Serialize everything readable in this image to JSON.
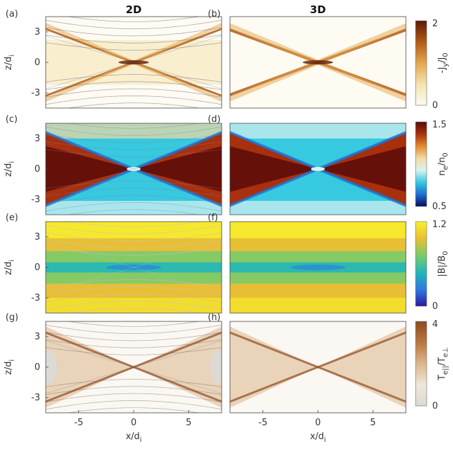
{
  "column_titles": [
    "2D",
    "3D"
  ],
  "panel_letters": [
    "(a)",
    "(b)",
    "(c)",
    "(d)",
    "(e)",
    "(f)",
    "(g)",
    "(h)"
  ],
  "row_ylabel": "z/d",
  "row_ylabel_sub": "i",
  "xlabel": "x/d",
  "xlabel_sub": "i",
  "colors": {
    "Jy": [
      "#fdfbf2",
      "#f5e3b0",
      "#e3a74e",
      "#b25a14",
      "#5c1a05"
    ],
    "ne": [
      "#0b0a66",
      "#1f6fd1",
      "#37c9e0",
      "#d9f2f0",
      "#f4d9a1",
      "#e08a2c",
      "#a8300c",
      "#5a0a0a"
    ],
    "B": [
      "#2a1a9e",
      "#2c7be0",
      "#22b7b8",
      "#7bcb6a",
      "#e8bf34",
      "#f9f22a"
    ],
    "T": [
      "#dcdad4",
      "#efe7dc",
      "#dbb78a",
      "#b9773f",
      "#8c4a1e"
    ]
  },
  "chart_data": [
    {
      "type": "heatmap",
      "panel": "(a)",
      "column": "2D",
      "quantity": "Jy",
      "colorbar": {
        "label": "-J_y/J_0",
        "ticks": [
          "0",
          "2"
        ],
        "range": [
          0,
          2
        ]
      },
      "xlim": [
        -8,
        8
      ],
      "ylim": [
        -4.5,
        4.5
      ],
      "xticks": [
        -5,
        0,
        5
      ],
      "yticks": [
        -3,
        0,
        3
      ]
    },
    {
      "type": "heatmap",
      "panel": "(b)",
      "column": "3D",
      "quantity": "Jy",
      "xlim": [
        -8,
        8
      ],
      "ylim": [
        -4.5,
        4.5
      ]
    },
    {
      "type": "heatmap",
      "panel": "(c)",
      "column": "2D",
      "quantity": "ne",
      "colorbar": {
        "label": "n_e/n_0",
        "ticks": [
          "0.5",
          "1.5"
        ],
        "range": [
          0.5,
          1.5
        ]
      },
      "xlim": [
        -8,
        8
      ],
      "ylim": [
        -4.5,
        4.5
      ],
      "yticks": [
        -3,
        0,
        3
      ]
    },
    {
      "type": "heatmap",
      "panel": "(d)",
      "column": "3D",
      "quantity": "ne",
      "xlim": [
        -8,
        8
      ],
      "ylim": [
        -4.5,
        4.5
      ]
    },
    {
      "type": "heatmap",
      "panel": "(e)",
      "column": "2D",
      "quantity": "B",
      "colorbar": {
        "label": "|B|/B_0",
        "ticks": [
          "0",
          "1.2"
        ],
        "range": [
          0,
          1.2
        ]
      },
      "xlim": [
        -8,
        8
      ],
      "ylim": [
        -4.5,
        4.5
      ],
      "yticks": [
        -3,
        0,
        3
      ]
    },
    {
      "type": "heatmap",
      "panel": "(f)",
      "column": "3D",
      "quantity": "B",
      "xlim": [
        -8,
        8
      ],
      "ylim": [
        -4.5,
        4.5
      ]
    },
    {
      "type": "heatmap",
      "panel": "(g)",
      "column": "2D",
      "quantity": "T",
      "colorbar": {
        "label": "T_e||/T_e⊥",
        "ticks": [
          "0",
          "4"
        ],
        "range": [
          0,
          4
        ]
      },
      "xlim": [
        -8,
        8
      ],
      "ylim": [
        -4.5,
        4.5
      ],
      "xticks": [
        -5,
        0,
        5
      ],
      "yticks": [
        -3,
        0,
        3
      ]
    },
    {
      "type": "heatmap",
      "panel": "(h)",
      "column": "3D",
      "quantity": "T",
      "xlim": [
        -8,
        8
      ],
      "ylim": [
        -4.5,
        4.5
      ],
      "xticks": [
        -5,
        0,
        5
      ]
    }
  ],
  "ytick_labels": [
    "3",
    "0",
    "-3"
  ],
  "xtick_labels": [
    "-5",
    "0",
    "5"
  ],
  "colorbar_texts": {
    "Jy": {
      "main": "-J",
      "sub1": "y",
      "mid": "/J",
      "sub2": "0",
      "top": "2",
      "bottom": "0"
    },
    "ne": {
      "main": "n",
      "sub1": "e",
      "mid": "/n",
      "sub2": "0",
      "top": "1.5",
      "bottom": "0.5"
    },
    "B": {
      "main": "|B|/B",
      "sub1": "",
      "mid": "",
      "sub2": "0",
      "top": "1.2",
      "bottom": "0"
    },
    "T": {
      "main": "T",
      "sub1": "e||",
      "mid": "/T",
      "sub2": "e⊥",
      "top": "4",
      "bottom": "0"
    }
  }
}
